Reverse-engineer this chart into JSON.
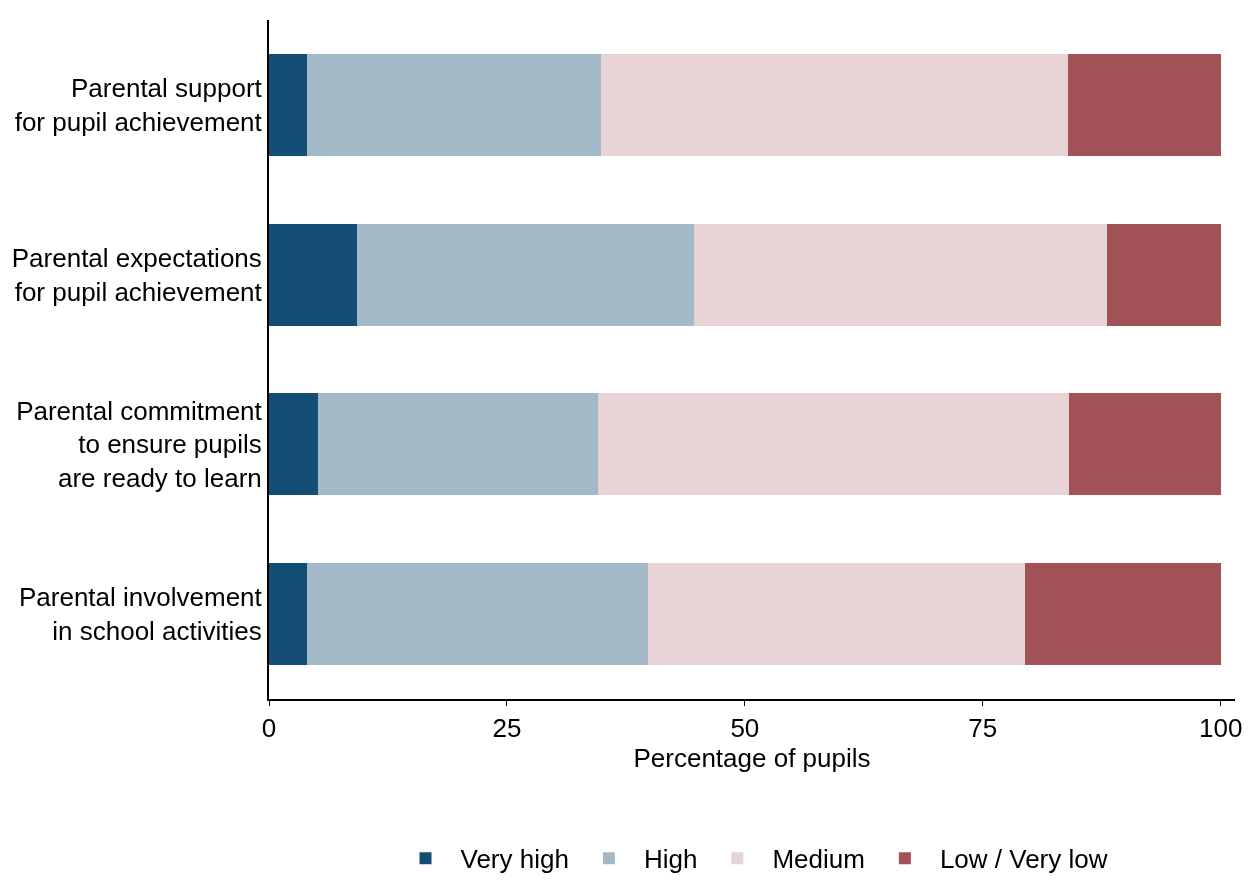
{
  "chart_data": {
    "type": "bar",
    "orientation": "horizontal",
    "stacked": true,
    "xlabel": "Percentage of pupils",
    "categories": [
      "Parental support\nfor pupil achievement",
      "Parental expectations\nfor pupil achievement",
      "Parental commitment\nto ensure pupils\nare ready to learn",
      "Parental involvement\nin school activities"
    ],
    "series": [
      {
        "name": "Very high",
        "color": "#134f75",
        "values": [
          4.0,
          9.2,
          5.1,
          4.0
        ]
      },
      {
        "name": "High",
        "color": "#a3b9c8",
        "values": [
          30.9,
          35.5,
          29.5,
          35.8
        ]
      },
      {
        "name": "Medium",
        "color": "#e7d3d5",
        "values": [
          49.0,
          43.4,
          49.5,
          39.6
        ]
      },
      {
        "name": "Low / Very low",
        "color": "#a05257",
        "values": [
          16.1,
          11.9,
          15.9,
          20.6
        ]
      }
    ],
    "xlim": [
      0,
      101.5
    ],
    "xticks": [
      0,
      25,
      50,
      75,
      100
    ],
    "legend": "bottom"
  }
}
